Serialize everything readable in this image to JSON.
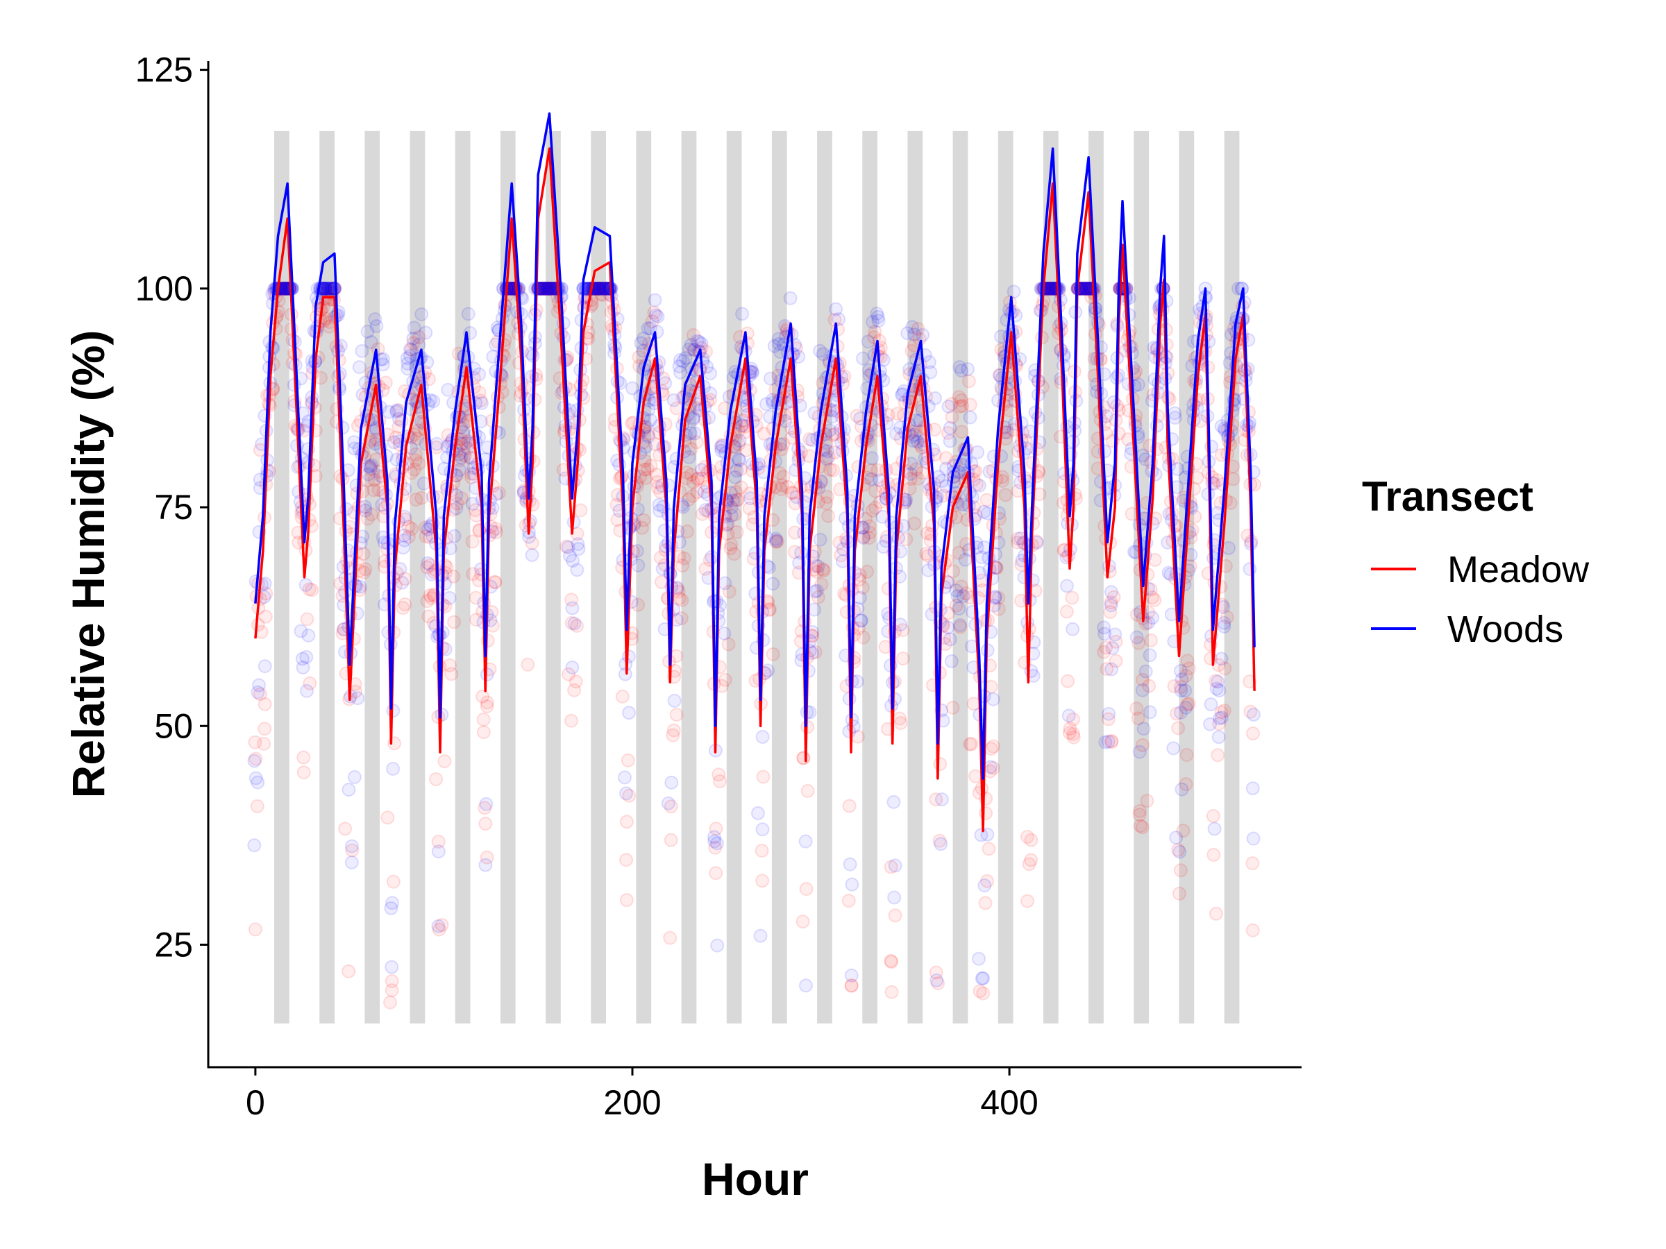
{
  "chart_data": {
    "type": "line",
    "title": "",
    "xlabel": "Hour",
    "ylabel": "Relative Humidity (%)",
    "xlim": [
      -25,
      555
    ],
    "ylim": [
      11,
      126
    ],
    "xticks": [
      0,
      200,
      400
    ],
    "yticks": [
      25,
      50,
      75,
      100,
      125
    ],
    "night_bands": {
      "color": "#d9d9d9",
      "y_range": [
        16,
        118
      ],
      "intervals": [
        [
          10,
          18
        ],
        [
          34,
          42
        ],
        [
          58,
          66
        ],
        [
          82,
          90
        ],
        [
          106,
          114
        ],
        [
          130,
          138
        ],
        [
          154,
          162
        ],
        [
          178,
          186
        ],
        [
          202,
          210
        ],
        [
          226,
          234
        ],
        [
          250,
          258
        ],
        [
          274,
          282
        ],
        [
          298,
          306
        ],
        [
          322,
          330
        ],
        [
          346,
          354
        ],
        [
          370,
          378
        ],
        [
          394,
          402
        ],
        [
          418,
          426
        ],
        [
          442,
          450
        ],
        [
          466,
          474
        ],
        [
          490,
          498
        ],
        [
          514,
          522
        ]
      ]
    },
    "legend": {
      "title": "Transect",
      "position": "right"
    },
    "series": [
      {
        "name": "Meadow",
        "color": "#ff0000",
        "x": [
          0,
          4,
          8,
          12,
          17,
          21,
          26,
          28,
          32,
          36,
          42,
          47,
          50,
          56,
          64,
          70,
          72,
          74,
          80,
          88,
          96,
          98,
          100,
          106,
          112,
          120,
          122,
          124,
          130,
          136,
          141,
          145,
          147,
          150,
          156,
          162,
          168,
          171,
          174,
          180,
          188,
          195,
          197,
          200,
          206,
          212,
          218,
          220,
          222,
          228,
          236,
          242,
          244,
          246,
          252,
          260,
          266,
          268,
          270,
          276,
          284,
          290,
          292,
          294,
          300,
          308,
          314,
          316,
          318,
          324,
          330,
          336,
          338,
          340,
          346,
          353,
          360,
          362,
          364,
          370,
          378,
          384,
          386,
          388,
          394,
          401,
          408,
          410,
          412,
          418,
          423,
          428,
          432,
          434,
          436,
          442,
          447,
          452,
          456,
          458,
          460,
          466,
          471,
          476,
          480,
          482,
          484,
          490,
          495,
          500,
          504,
          506,
          508,
          514,
          520,
          524,
          528,
          530
        ],
        "y": [
          60,
          70,
          90,
          100,
          108,
          90,
          67,
          72,
          92,
          99,
          99,
          72,
          53,
          80,
          89,
          75,
          48,
          68,
          82,
          89,
          70,
          47,
          70,
          82,
          91,
          75,
          54,
          74,
          90,
          108,
          92,
          72,
          80,
          108,
          116,
          95,
          72,
          80,
          95,
          102,
          103,
          75,
          56,
          75,
          87,
          92,
          75,
          55,
          70,
          85,
          90,
          75,
          47,
          70,
          82,
          92,
          75,
          50,
          70,
          82,
          92,
          74,
          46,
          70,
          82,
          92,
          74,
          47,
          70,
          82,
          90,
          74,
          48,
          70,
          84,
          90,
          73,
          44,
          65,
          75,
          79,
          55,
          38,
          60,
          80,
          95,
          75,
          55,
          72,
          100,
          112,
          90,
          68,
          75,
          100,
          111,
          90,
          67,
          75,
          96,
          105,
          82,
          62,
          76,
          96,
          101,
          82,
          58,
          74,
          90,
          97,
          78,
          57,
          73,
          92,
          97,
          75,
          54
        ]
      },
      {
        "name": "Woods",
        "color": "#0000ff",
        "x": [
          0,
          4,
          8,
          12,
          17,
          21,
          26,
          28,
          32,
          36,
          42,
          47,
          50,
          56,
          64,
          70,
          72,
          74,
          80,
          88,
          96,
          98,
          100,
          106,
          112,
          120,
          122,
          124,
          130,
          136,
          141,
          145,
          147,
          150,
          156,
          162,
          168,
          171,
          174,
          180,
          188,
          195,
          197,
          200,
          206,
          212,
          218,
          220,
          222,
          228,
          236,
          242,
          244,
          246,
          252,
          260,
          266,
          268,
          270,
          276,
          284,
          290,
          292,
          294,
          300,
          308,
          314,
          316,
          318,
          324,
          330,
          336,
          338,
          340,
          346,
          353,
          360,
          362,
          364,
          370,
          378,
          384,
          386,
          388,
          394,
          401,
          408,
          410,
          412,
          418,
          423,
          428,
          432,
          434,
          436,
          442,
          447,
          452,
          456,
          458,
          460,
          466,
          471,
          476,
          480,
          482,
          484,
          490,
          495,
          500,
          504,
          506,
          508,
          514,
          520,
          524,
          528,
          530
        ],
        "y": [
          64,
          74,
          95,
          106,
          112,
          94,
          71,
          76,
          98,
          103,
          104,
          77,
          57,
          84,
          93,
          78,
          52,
          73,
          87,
          93,
          74,
          51,
          74,
          86,
          95,
          79,
          58,
          78,
          95,
          112,
          96,
          76,
          84,
          113,
          120,
          100,
          76,
          84,
          101,
          107,
          106,
          79,
          61,
          80,
          91,
          95,
          78,
          57,
          75,
          89,
          93,
          78,
          50,
          74,
          86,
          95,
          78,
          53,
          74,
          86,
          96,
          77,
          50,
          74,
          86,
          96,
          77,
          51,
          74,
          86,
          94,
          77,
          52,
          74,
          88,
          94,
          77,
          48,
          68,
          79,
          83,
          58,
          44,
          64,
          84,
          99,
          79,
          64,
          75,
          104,
          116,
          94,
          74,
          80,
          104,
          115,
          94,
          71,
          80,
          100,
          110,
          86,
          66,
          80,
          100,
          106,
          86,
          62,
          78,
          94,
          100,
          82,
          61,
          77,
          96,
          100,
          79,
          59
        ]
      }
    ]
  }
}
